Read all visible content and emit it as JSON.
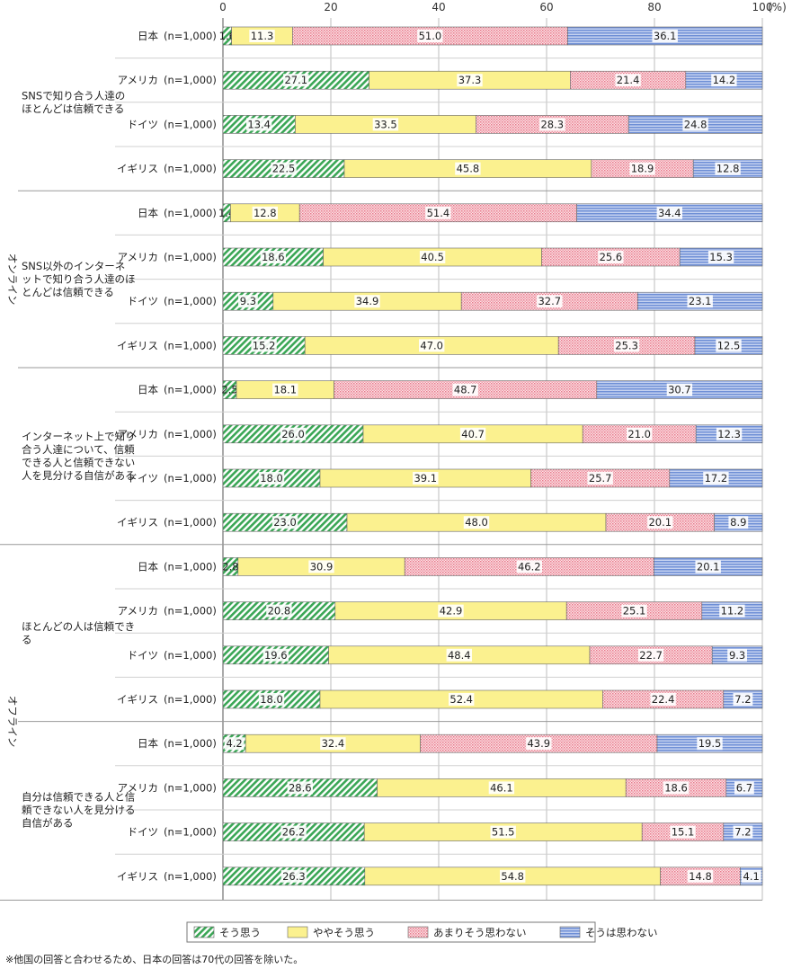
{
  "chart_data": {
    "type": "bar",
    "orientation": "horizontal",
    "stacked": true,
    "xlim": [
      0,
      100
    ],
    "ticks": [
      "0",
      "20",
      "40",
      "60",
      "80",
      "100"
    ],
    "unit": "(%)",
    "series": [
      {
        "name": "そう思う",
        "color": "#3aa655",
        "pattern": "diagonal-hatch"
      },
      {
        "name": "ややそう思う",
        "color": "#fbf18f",
        "pattern": "solid"
      },
      {
        "name": "あまりそう思わない",
        "color": "#e8788b",
        "pattern": "dots"
      },
      {
        "name": "そうは思わない",
        "color": "#6e8fd6",
        "pattern": "horizontal-lines"
      }
    ],
    "sections": [
      {
        "label": "オンライン",
        "groups": [
          {
            "label": "SNSで知り合う人達のほとんどは信頼できる",
            "rows": [
              {
                "country": "日本",
                "n": "(n=1,000)",
                "values": [
                  1.6,
                  11.3,
                  51.0,
                  36.1
                ]
              },
              {
                "country": "アメリカ",
                "n": "(n=1,000)",
                "values": [
                  27.1,
                  37.3,
                  21.4,
                  14.2
                ]
              },
              {
                "country": "ドイツ",
                "n": "(n=1,000)",
                "values": [
                  13.4,
                  33.5,
                  28.3,
                  24.8
                ]
              },
              {
                "country": "イギリス",
                "n": "(n=1,000)",
                "values": [
                  22.5,
                  45.8,
                  18.9,
                  12.8
                ]
              }
            ]
          },
          {
            "label": "SNS以外のインターネットで知り合う人達のほとんどは信頼できる",
            "rows": [
              {
                "country": "日本",
                "n": "(n=1,000)",
                "values": [
                  1.4,
                  12.8,
                  51.4,
                  34.4
                ]
              },
              {
                "country": "アメリカ",
                "n": "(n=1,000)",
                "values": [
                  18.6,
                  40.5,
                  25.6,
                  15.3
                ]
              },
              {
                "country": "ドイツ",
                "n": "(n=1,000)",
                "values": [
                  9.3,
                  34.9,
                  32.7,
                  23.1
                ]
              },
              {
                "country": "イギリス",
                "n": "(n=1,000)",
                "values": [
                  15.2,
                  47.0,
                  25.3,
                  12.5
                ]
              }
            ]
          },
          {
            "label": "インターネット上で知り合う人達について、信頼できる人と信頼できない人を見分ける自信がある",
            "rows": [
              {
                "country": "日本",
                "n": "(n=1,000)",
                "values": [
                  2.5,
                  18.1,
                  48.7,
                  30.7
                ]
              },
              {
                "country": "アメリカ",
                "n": "(n=1,000)",
                "values": [
                  26.0,
                  40.7,
                  21.0,
                  12.3
                ]
              },
              {
                "country": "ドイツ",
                "n": "(n=1,000)",
                "values": [
                  18.0,
                  39.1,
                  25.7,
                  17.2
                ]
              },
              {
                "country": "イギリス",
                "n": "(n=1,000)",
                "values": [
                  23.0,
                  48.0,
                  20.1,
                  8.9
                ]
              }
            ]
          }
        ]
      },
      {
        "label": "オフライン",
        "groups": [
          {
            "label": "ほとんどの人は信頼できる",
            "rows": [
              {
                "country": "日本",
                "n": "(n=1,000)",
                "values": [
                  2.8,
                  30.9,
                  46.2,
                  20.1
                ]
              },
              {
                "country": "アメリカ",
                "n": "(n=1,000)",
                "values": [
                  20.8,
                  42.9,
                  25.1,
                  11.2
                ]
              },
              {
                "country": "ドイツ",
                "n": "(n=1,000)",
                "values": [
                  19.6,
                  48.4,
                  22.7,
                  9.3
                ]
              },
              {
                "country": "イギリス",
                "n": "(n=1,000)",
                "values": [
                  18.0,
                  52.4,
                  22.4,
                  7.2
                ]
              }
            ]
          },
          {
            "label": "自分は信頼できる人と信頼できない人を見分ける自信がある",
            "rows": [
              {
                "country": "日本",
                "n": "(n=1,000)",
                "values": [
                  4.2,
                  32.4,
                  43.9,
                  19.5
                ]
              },
              {
                "country": "アメリカ",
                "n": "(n=1,000)",
                "values": [
                  28.6,
                  46.1,
                  18.6,
                  6.7
                ]
              },
              {
                "country": "ドイツ",
                "n": "(n=1,000)",
                "values": [
                  26.2,
                  51.5,
                  15.1,
                  7.2
                ]
              },
              {
                "country": "イギリス",
                "n": "(n=1,000)",
                "values": [
                  26.3,
                  54.8,
                  14.8,
                  4.1
                ]
              }
            ]
          }
        ]
      }
    ],
    "legend_position": "bottom",
    "footnote": "※他国の回答と合わせるため、日本の回答は70代の回答を除いた。"
  }
}
